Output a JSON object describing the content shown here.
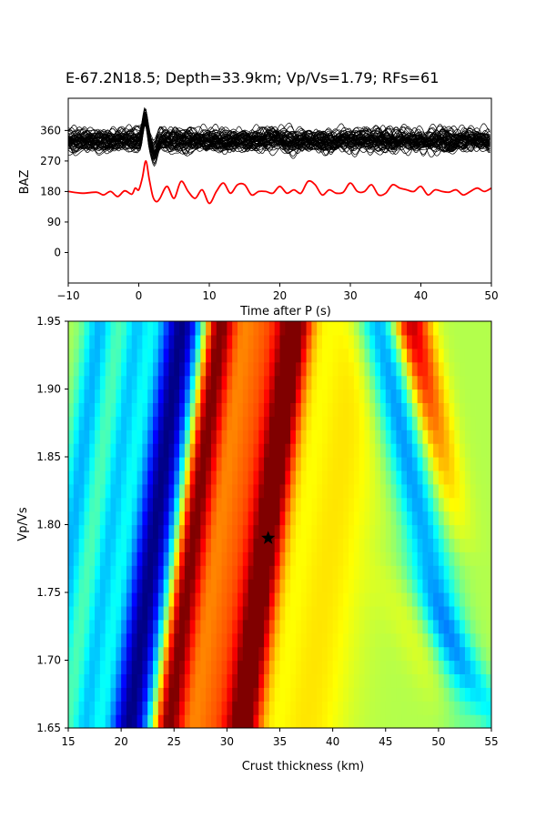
{
  "title": "E-67.2N18.5; Depth=33.9km; Vp/Vs=1.79; RFs=61",
  "chart_data": [
    {
      "type": "line",
      "xlabel": "Time after P (s)",
      "ylabel": "BAZ",
      "xlim": [
        -10,
        50
      ],
      "ylim": [
        -90,
        455
      ],
      "xticks": [
        "−10",
        "0",
        "10",
        "20",
        "30",
        "40",
        "50"
      ],
      "xtick_values": [
        -10,
        0,
        10,
        20,
        30,
        40,
        50
      ],
      "yticks": [
        "0",
        "90",
        "180",
        "270",
        "360"
      ],
      "ytick_values": [
        0,
        90,
        180,
        270,
        360
      ],
      "grid": false,
      "series": [
        {
          "kind": "individual receiver functions",
          "count": 61,
          "color": "#000000",
          "baseline": 330
        },
        {
          "kind": "stacked receiver function",
          "color": "#ff0000",
          "baseline": 180,
          "t": [
            -10,
            -8,
            -6,
            -5,
            -4,
            -3,
            -2,
            -1,
            -0.5,
            0,
            0.5,
            1,
            1.5,
            2,
            2.5,
            3,
            4,
            5,
            6,
            7,
            8,
            9,
            10,
            11,
            12,
            13,
            14,
            15,
            16,
            17,
            18,
            19,
            20,
            21,
            22,
            23,
            24,
            25,
            26,
            27,
            28,
            29,
            30,
            31,
            32,
            33,
            34,
            35,
            36,
            37,
            38,
            39,
            40,
            41,
            42,
            43,
            44,
            45,
            46,
            47,
            48,
            49,
            50
          ],
          "y": [
            180,
            175,
            178,
            170,
            180,
            165,
            182,
            172,
            190,
            185,
            220,
            270,
            215,
            165,
            150,
            160,
            195,
            160,
            210,
            180,
            160,
            185,
            145,
            180,
            205,
            175,
            200,
            200,
            170,
            180,
            180,
            175,
            195,
            175,
            185,
            175,
            210,
            200,
            170,
            185,
            175,
            178,
            205,
            180,
            180,
            200,
            170,
            175,
            200,
            190,
            185,
            180,
            195,
            170,
            185,
            180,
            178,
            185,
            170,
            180,
            190,
            180,
            190
          ]
        }
      ]
    },
    {
      "type": "heatmap",
      "xlabel": "Crust thickness (km)",
      "ylabel": "Vp/Vs",
      "xlim": [
        15,
        55
      ],
      "ylim": [
        1.65,
        1.95
      ],
      "xticks": [
        "15",
        "20",
        "25",
        "30",
        "35",
        "40",
        "45",
        "50",
        "55"
      ],
      "xtick_values": [
        15,
        20,
        25,
        30,
        35,
        40,
        45,
        50,
        55
      ],
      "yticks": [
        "1.65",
        "1.70",
        "1.75",
        "1.80",
        "1.85",
        "1.90",
        "1.95"
      ],
      "ytick_values": [
        1.65,
        1.7,
        1.75,
        1.8,
        1.85,
        1.9,
        1.95
      ],
      "colormap": "jet",
      "grid": false,
      "best_estimate": {
        "crust_thickness": 33.9,
        "vp_vs": 1.79,
        "marker": "star",
        "color": "#000000"
      }
    }
  ]
}
